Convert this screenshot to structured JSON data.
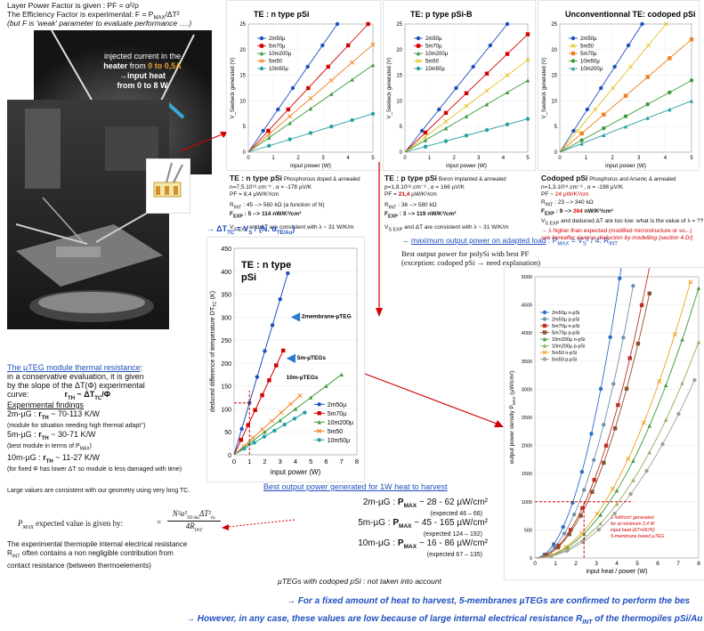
{
  "header": {
    "line1": "Layer Power Factor is given :     PF = α²/ρ",
    "line2": "The Efficiency Factor is experimental: F = P",
    "line2_sub": "MAX",
    "line2_end": "/ΔT²",
    "line3": "(but F is 'weak' parameter to evaluate performance ….)"
  },
  "photo": {
    "label1": "injected current in the",
    "label2a": "heater",
    "label2b": " from ",
    "label2c": "0 to 0,5A",
    "label3": "→input heat",
    "label4": "from 0 to 8 W",
    "vs": "V",
    "vs_sub": "S"
  },
  "charts": [
    {
      "title_prefix": "TE : ",
      "title": "n type pSi",
      "ylabel": "V_Seebeck  generated  (V)",
      "xlabel": "input power (W)",
      "yticks": [
        "0",
        "5",
        "10",
        "15",
        "20",
        "25"
      ],
      "xticks": [
        "0",
        "1",
        "2",
        "3",
        "4",
        "5"
      ],
      "legend": [
        "2m50µ",
        "5m70µ",
        "10m200µ",
        "5m50",
        "10m50µ"
      ]
    },
    {
      "title_prefix": "TE: ",
      "title": "p type pSi-B",
      "ylabel": "V_Seebeck  generated  (V)",
      "xlabel": "input power (W)",
      "yticks": [
        "0",
        "5",
        "10",
        "15",
        "20",
        "25"
      ],
      "xticks": [
        "0",
        "1",
        "2",
        "3",
        "4",
        "5"
      ],
      "legend": [
        "2m50µ",
        "5m70µ",
        "10m200µ",
        "5m50",
        "10m50µ"
      ]
    },
    {
      "title_prefix": "Unconventionnal  TE: ",
      "title": "codoped pSi",
      "ylabel": "V_Seebeck  generated  (V)",
      "xlabel": "input power (W)",
      "yticks": [
        "0",
        "5",
        "10",
        "15",
        "20",
        "25"
      ],
      "xticks": [
        "0",
        "1",
        "2",
        "3",
        "4",
        "5"
      ],
      "legend": [
        "2m50µ",
        "5m50",
        "5m70µ",
        "10m50µ",
        "10m200µ"
      ]
    }
  ],
  "props": [
    {
      "title": "TE : n type pSi",
      "subtitle": "Phosphorous doped & annealed",
      "l1": "n=7,5.10¹⁸.cm⁻³  , α = -178 µV/K",
      "l2": "PF = 8,4 µW/K²/cm",
      "l3": "R",
      "l3sub": "INT",
      "l3b": " : 45 --> 560 kΩ (a function of N",
      "l3c": ")",
      "l4a": "F",
      "l4sub": "EXP",
      "l4b": " : 5 --> 114  nW/K²/cm²",
      "l5": "V",
      "l5sub": "S EXP",
      "l5b": " and ΔT are consistent with λ ~ 31 W/K/m"
    },
    {
      "title": "TE : p type pSi",
      "subtitle": "Boron implanted & annealed",
      "l1": "p=1,8.10¹⁸.cm⁻³  , α = 166 µV/K",
      "l2a": "PF = ",
      "l2b": "21,4",
      "l2c": " µW/K²/cm",
      "l3": "R",
      "l3sub": "INT",
      "l3b": " : 36 --> 580 kΩ",
      "l4a": "F",
      "l4sub": "EXP",
      "l4b": " : 3 --> 119  nW/K²/cm²",
      "l5": "V",
      "l5sub": "S EXP",
      "l5b": " and ΔT are consistent with λ ~ 31 W/K/m"
    },
    {
      "title": "Codoped pSi",
      "subtitle": "Phosphorus and Arsenic & annealed",
      "l1": "n=1,3.10¹⁸.cm⁻³  , α = -198 µV/K",
      "l2a": "PF ~ ",
      "l2b": "24 µW/K²/cm",
      "l3": "R",
      "l3sub": "INT",
      "l3b": " : 23 --> 340 kΩ",
      "l4a": "F",
      "l4sub": "EXP",
      "l4b": " : 9 --> ",
      "l4c": "264",
      "l4d": " nW/K²/cm²",
      "l5": "V",
      "l5sub": "S EXP",
      "l5b": " and deduced ΔT are too low: what is  the value of λ = ??",
      "l6": "→ λ higher than expected (modified microstructure or so...)",
      "l7": "see hereafter reverse deduction by modelling (section 4.D/)"
    }
  ],
  "dtc": {
    "formula_a": "→ ΔT",
    "formula_sub": "TC",
    "formula_b": " =  V",
    "formula_sub2": "S",
    "formula_c": " / (N. α",
    "formula_sub3": "TE/Au",
    "formula_d": ")",
    "title1": "TE : n type",
    "title2": "pSi",
    "ylabel": "deduced difference of temperature DT",
    "ylabel_sub": "TC",
    "ylabel_unit": " (K)",
    "xlabel": "input power (W)",
    "yticks": [
      "0",
      "50",
      "100",
      "150",
      "200",
      "250",
      "300",
      "350",
      "400",
      "450"
    ],
    "xticks": [
      "0",
      "1",
      "2",
      "3",
      "4",
      "5",
      "6",
      "7",
      "8"
    ],
    "ann1": "2membrane-µTEG",
    "ann2": "5m-µTEGs",
    "ann3": "10m-µTEGs",
    "legend": [
      "2m50µ",
      "5m70µ",
      "10m200µ",
      "5m50",
      "10m50µ"
    ]
  },
  "maxpow": {
    "line1a": "→ ",
    "line1b": "maximum output power on adapted load",
    "line1c": " : P",
    "line1sub": "MAX",
    "line1d": " = V",
    "line1sub2": "S",
    "line1e": "² / 4. R",
    "line1sub3": "INT",
    "line2": "Best output power for polySi with best PF",
    "line3": "(exception:  codoped pSi → need explanation)",
    "ylabel": "output power density  P",
    "ylabel_sub": "MAX",
    "ylabel_unit": " (µW/cm²)",
    "xlabel": "input  heat / power (W)",
    "yticks": [
      "0",
      "500",
      "1000",
      "1500",
      "2000",
      "2500",
      "3000",
      "3500",
      "4000",
      "4500",
      "5000"
    ],
    "xticks": [
      "0",
      "1",
      "2",
      "3",
      "4",
      "5",
      "6",
      "7",
      "8"
    ],
    "legend": [
      "2m50µ  n-pSi",
      "2m50µ  p-pSi",
      "5m70µ  n-pSi",
      "5m70µ  p-pSi",
      "10m200µ  n-pSi",
      "10m200µ  p-pSi",
      "5m50  n-pSi",
      "5m50  p-pSi"
    ],
    "note1": "1 mW/cm² generated",
    "note2": "for  at minimum 2,4 W",
    "note3": "input heat  (ΔT=267K)",
    "note4": "5-membrane based µTEG"
  },
  "left": {
    "res_title": "The µTEG module thermal resistance",
    "res_colon": ":",
    "res1": "in a conservative evaluation, it is given",
    "res2": "by the slope of the ΔT(Φ) experimental",
    "res3a": "curve:",
    "res3b": "r",
    "res3sub": "TH",
    "res3c": " ~   ΔT",
    "res3sub2": "TC",
    "res3d": "/Φ",
    "find_title": "Experimental findings",
    "f1a": "2m-µG  :  ",
    "f1b": "r",
    "f1sub": "TH",
    "f1c": " ~ 70-113 K/W",
    "f1note": "(module for situation needing high thermal adapt°)",
    "f2a": "5m-µG  :  ",
    "f2b": "r",
    "f2sub": "TH",
    "f2c": " ~ 30-71 K/W",
    "f2note": "(best module in terms of P",
    "f2notesub": "MAX",
    "f2note_end": ")",
    "f3a": "10m-µG  :  ",
    "f3b": "r",
    "f3sub": "TH",
    "f3c": " ~ 11-27 K/W",
    "f3note": "(for fixed Φ has lower ΔT so module is less damaged with time)",
    "large": "Large values are consistent with our geometry using very long TC.",
    "pmax_a": "P",
    "pmax_sub": "MAX",
    "pmax_b": " expected value is given by:",
    "pmax_eq": "=",
    "pmax_num": "N²α²",
    "pmax_num_sub": "TE/Au",
    "pmax_num2": "ΔT²",
    "pmax_num_sub2": "hc",
    "pmax_den": "4R",
    "pmax_den_sub": "INT",
    "int1": "The experimental thermopile internal electrical resistance",
    "int2a": "R",
    "int2sub": "INT",
    "int2b": " often contains a non negligible contribution from",
    "int3": "contact resistance (between thermoelements)"
  },
  "best": {
    "title": "Best output power generated for 1W heat to harvest",
    "r1a": "2m-µG  : ",
    "r1b": "P",
    "r1sub": "MAX",
    "r1c": " ~  28 - 62 µW/cm²",
    "r1e": "(expected 46 – 66)",
    "r2a": "5m-µG  : ",
    "r2b": "P",
    "r2sub": "MAX",
    "r2c": " ~  45 - 165 µW/cm²",
    "r2e": "(expected 124 – 192)",
    "r3a": "10m-µG  : ",
    "r3b": "P",
    "r3sub": "MAX",
    "r3c": " ~  16 - 86 µW/cm²",
    "r3e": "(expected 67 – 135)",
    "codoped": "µTEGs with codoped pSi :  not taken into account"
  },
  "footer": {
    "f1": "→ For a fixed amount of heat to harvest, 5-membranes µTEGs are confirmed to perform the bes",
    "f2a": "→ However, in any case, these values are low because of large internal electrical resistance R",
    "f2sub": "INT",
    "f2b": " of the thermopiles pSi/Au"
  },
  "colors": {
    "blue": "#1f4fbf",
    "red": "#d40000",
    "orange": "#f08020",
    "green": "#3c9a3c",
    "yellow": "#e4c020",
    "teal": "#2aa0a0"
  }
}
